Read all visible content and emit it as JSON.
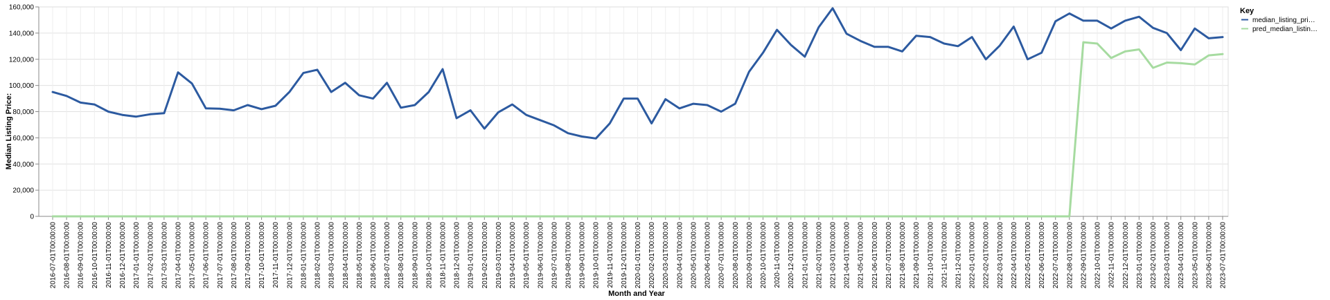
{
  "chart_data": {
    "type": "line",
    "xlabel": "Month and Year",
    "ylabel": "Median Listing Price:",
    "ylim": [
      0,
      160000
    ],
    "yticks": [
      "0",
      "20,000",
      "40,000",
      "60,000",
      "80,000",
      "100,000",
      "120,000",
      "140,000",
      "160,000"
    ],
    "grid": true,
    "legend": {
      "title": "Key",
      "position": "top-right",
      "entries": [
        "median_listing_pri…",
        "pred_median_listin…"
      ]
    },
    "x": [
      "2016-07-01T00:00:00",
      "2016-08-01T00:00:00",
      "2016-09-01T00:00:00",
      "2016-10-01T00:00:00",
      "2016-11-01T00:00:00",
      "2016-12-01T00:00:00",
      "2017-01-01T00:00:00",
      "2017-02-01T00:00:00",
      "2017-03-01T00:00:00",
      "2017-04-01T00:00:00",
      "2017-05-01T00:00:00",
      "2017-06-01T00:00:00",
      "2017-07-01T00:00:00",
      "2017-08-01T00:00:00",
      "2017-09-01T00:00:00",
      "2017-10-01T00:00:00",
      "2017-11-01T00:00:00",
      "2017-12-01T00:00:00",
      "2018-01-01T00:00:00",
      "2018-02-01T00:00:00",
      "2018-03-01T00:00:00",
      "2018-04-01T00:00:00",
      "2018-05-01T00:00:00",
      "2018-06-01T00:00:00",
      "2018-07-01T00:00:00",
      "2018-08-01T00:00:00",
      "2018-09-01T00:00:00",
      "2018-10-01T00:00:00",
      "2018-11-01T00:00:00",
      "2018-12-01T00:00:00",
      "2019-01-01T00:00:00",
      "2019-02-01T00:00:00",
      "2019-03-01T00:00:00",
      "2019-04-01T00:00:00",
      "2019-05-01T00:00:00",
      "2019-06-01T00:00:00",
      "2019-07-01T00:00:00",
      "2019-08-01T00:00:00",
      "2019-09-01T00:00:00",
      "2019-10-01T00:00:00",
      "2019-11-01T00:00:00",
      "2019-12-01T00:00:00",
      "2020-01-01T00:00:00",
      "2020-02-01T00:00:00",
      "2020-03-01T00:00:00",
      "2020-04-01T00:00:00",
      "2020-05-01T00:00:00",
      "2020-06-01T00:00:00",
      "2020-07-01T00:00:00",
      "2020-08-01T00:00:00",
      "2020-09-01T00:00:00",
      "2020-10-01T00:00:00",
      "2020-11-01T00:00:00",
      "2020-12-01T00:00:00",
      "2021-01-01T00:00:00",
      "2021-02-01T00:00:00",
      "2021-03-01T00:00:00",
      "2021-04-01T00:00:00",
      "2021-05-01T00:00:00",
      "2021-06-01T00:00:00",
      "2021-07-01T00:00:00",
      "2021-08-01T00:00:00",
      "2021-09-01T00:00:00",
      "2021-10-01T00:00:00",
      "2021-11-01T00:00:00",
      "2021-12-01T00:00:00",
      "2022-01-01T00:00:00",
      "2022-02-01T00:00:00",
      "2022-03-01T00:00:00",
      "2022-04-01T00:00:00",
      "2022-05-01T00:00:00",
      "2022-06-01T00:00:00",
      "2022-07-01T00:00:00",
      "2022-08-01T00:00:00",
      "2022-09-01T00:00:00",
      "2022-10-01T00:00:00",
      "2022-11-01T00:00:00",
      "2022-12-01T00:00:00",
      "2023-01-01T00:00:00",
      "2023-02-01T00:00:00",
      "2023-03-01T00:00:00",
      "2023-04-01T00:00:00",
      "2023-05-01T00:00:00",
      "2023-06-01T00:00:00",
      "2023-07-01T00:00:00"
    ],
    "series": [
      {
        "name": "median_listing_pri…",
        "color": "#2c5aa0",
        "values": [
          95000,
          92000,
          86900,
          85500,
          80000,
          77500,
          76200,
          78000,
          78800,
          110000,
          101500,
          82500,
          82200,
          81000,
          85000,
          81900,
          84500,
          95000,
          109500,
          112000,
          95000,
          102000,
          92500,
          90000,
          102000,
          83000,
          85000,
          95000,
          112500,
          75000,
          81000,
          67000,
          79500,
          85500,
          77500,
          73500,
          69500,
          63500,
          61000,
          59500,
          71000,
          90000,
          90000,
          71000,
          89500,
          82500,
          86000,
          85000,
          80000,
          86000,
          110500,
          125000,
          142500,
          131000,
          122000,
          144500,
          159000,
          139500,
          134000,
          129500,
          129500,
          126000,
          138000,
          137000,
          132000,
          130000,
          137000,
          120000,
          130500,
          145000,
          120000,
          125000,
          149000,
          155000,
          149500,
          149500,
          143500,
          149500,
          152500,
          144000,
          140000,
          127000,
          143500,
          136000,
          137000
        ],
        "values_note": ""
      },
      {
        "name": "pred_median_listin…",
        "color": "#a6dba0",
        "values": [
          0,
          0,
          0,
          0,
          0,
          0,
          0,
          0,
          0,
          0,
          0,
          0,
          0,
          0,
          0,
          0,
          0,
          0,
          0,
          0,
          0,
          0,
          0,
          0,
          0,
          0,
          0,
          0,
          0,
          0,
          0,
          0,
          0,
          0,
          0,
          0,
          0,
          0,
          0,
          0,
          0,
          0,
          0,
          0,
          0,
          0,
          0,
          0,
          0,
          0,
          0,
          0,
          0,
          0,
          0,
          0,
          0,
          0,
          0,
          0,
          0,
          0,
          0,
          0,
          0,
          0,
          0,
          0,
          0,
          0,
          0,
          0,
          0,
          0,
          133000,
          132000,
          121000,
          126000,
          127500,
          113500,
          117500,
          117000,
          116000,
          123000,
          124000
        ]
      }
    ]
  }
}
